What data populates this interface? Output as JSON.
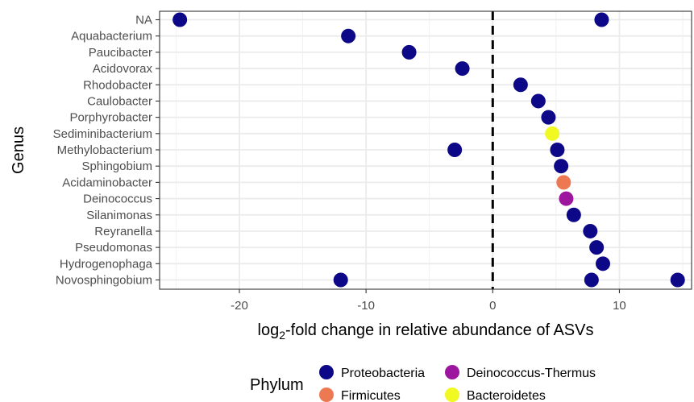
{
  "chart_data": {
    "type": "scatter",
    "xlabel_prefix": "log",
    "xlabel_sub": "2",
    "xlabel_suffix": "-fold change in relative abundance of ASVs",
    "ylabel": "Genus",
    "xlim": [
      -26.3,
      15.7
    ],
    "x_ticks": [
      -20,
      -10,
      0,
      10
    ],
    "x_tick_labels": [
      "-20",
      "-10",
      "0",
      "10"
    ],
    "categories": [
      "NA",
      "Aquabacterium",
      "Paucibacter",
      "Acidovorax",
      "Rhodobacter",
      "Caulobacter",
      "Porphyrobacter",
      "Sediminibacterium",
      "Methylobacterium",
      "Sphingobium",
      "Acidaminobacter",
      "Deinococcus",
      "Silanimonas",
      "Reyranella",
      "Pseudomonas",
      "Hydrogenophaga",
      "Novosphingobium"
    ],
    "reference_line_x": 0,
    "grid": true,
    "legend_position": "bottom",
    "legend": {
      "title": "Phylum",
      "entries": [
        {
          "name": "Proteobacteria",
          "color": "#0d0887"
        },
        {
          "name": "Firmicutes",
          "color": "#ed7953"
        },
        {
          "name": "Deinococcus-Thermus",
          "color": "#9c179e"
        },
        {
          "name": "Bacteroidetes",
          "color": "#f0f921"
        }
      ]
    },
    "points": [
      {
        "genus": "NA",
        "x": -24.7,
        "phylum": "Proteobacteria"
      },
      {
        "genus": "NA",
        "x": 8.6,
        "phylum": "Proteobacteria"
      },
      {
        "genus": "Aquabacterium",
        "x": -11.4,
        "phylum": "Proteobacteria"
      },
      {
        "genus": "Paucibacter",
        "x": -6.6,
        "phylum": "Proteobacteria"
      },
      {
        "genus": "Acidovorax",
        "x": -2.4,
        "phylum": "Proteobacteria"
      },
      {
        "genus": "Rhodobacter",
        "x": 2.2,
        "phylum": "Proteobacteria"
      },
      {
        "genus": "Caulobacter",
        "x": 3.6,
        "phylum": "Proteobacteria"
      },
      {
        "genus": "Porphyrobacter",
        "x": 4.4,
        "phylum": "Proteobacteria"
      },
      {
        "genus": "Sediminibacterium",
        "x": 4.7,
        "phylum": "Bacteroidetes"
      },
      {
        "genus": "Methylobacterium",
        "x": -3.0,
        "phylum": "Proteobacteria"
      },
      {
        "genus": "Methylobacterium",
        "x": 5.1,
        "phylum": "Proteobacteria"
      },
      {
        "genus": "Sphingobium",
        "x": 5.4,
        "phylum": "Proteobacteria"
      },
      {
        "genus": "Acidaminobacter",
        "x": 5.6,
        "phylum": "Firmicutes"
      },
      {
        "genus": "Deinococcus",
        "x": 5.8,
        "phylum": "Deinococcus-Thermus"
      },
      {
        "genus": "Silanimonas",
        "x": 6.4,
        "phylum": "Proteobacteria"
      },
      {
        "genus": "Reyranella",
        "x": 7.7,
        "phylum": "Proteobacteria"
      },
      {
        "genus": "Pseudomonas",
        "x": 8.2,
        "phylum": "Proteobacteria"
      },
      {
        "genus": "Hydrogenophaga",
        "x": 8.7,
        "phylum": "Proteobacteria"
      },
      {
        "genus": "Novosphingobium",
        "x": -12.0,
        "phylum": "Proteobacteria"
      },
      {
        "genus": "Novosphingobium",
        "x": 7.8,
        "phylum": "Proteobacteria"
      },
      {
        "genus": "Novosphingobium",
        "x": 14.6,
        "phylum": "Proteobacteria"
      }
    ]
  }
}
